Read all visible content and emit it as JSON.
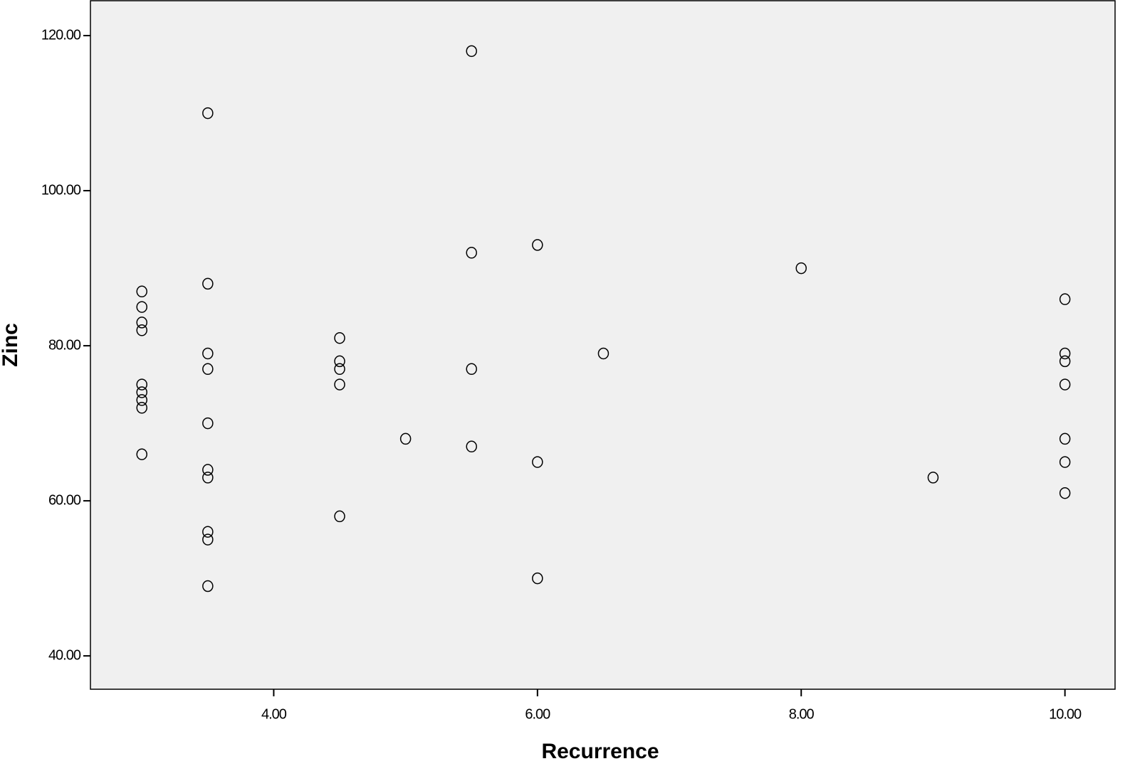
{
  "chart_data": {
    "type": "scatter",
    "x_label": "Recurrence",
    "y_label": "Zinc",
    "background": "#f0f0f0",
    "color": "#000000",
    "marker": "open-circle",
    "grid": false,
    "xlim": [
      2.61,
      10.38
    ],
    "ylim": [
      35.7,
      124.5
    ],
    "xticks": [
      {
        "value": 4,
        "label": "4.00"
      },
      {
        "value": 6,
        "label": "6.00"
      },
      {
        "value": 8,
        "label": "8.00"
      },
      {
        "value": 10,
        "label": "10.00"
      }
    ],
    "yticks": [
      {
        "value": 40,
        "label": "40.00"
      },
      {
        "value": 60,
        "label": "60.00"
      },
      {
        "value": 80,
        "label": "80.00"
      },
      {
        "value": 100,
        "label": "100.00"
      },
      {
        "value": 120,
        "label": "120.00"
      }
    ],
    "x": [
      3,
      3,
      3,
      3,
      3,
      3,
      3,
      3,
      3,
      3.5,
      3.5,
      3.5,
      3.5,
      3.5,
      3.5,
      3.5,
      3.5,
      3.5,
      3.5,
      4.5,
      4.5,
      4.5,
      4.5,
      4.5,
      5,
      5.5,
      5.5,
      5.5,
      5.5,
      6,
      6,
      6,
      6.5,
      8,
      9,
      10,
      10,
      10,
      10,
      10,
      10,
      10
    ],
    "values": [
      87,
      85,
      83,
      82,
      75,
      74,
      73,
      72,
      66,
      110,
      88,
      79,
      77,
      70,
      64,
      63,
      56,
      55,
      49,
      81,
      78,
      77,
      75,
      58,
      68,
      118,
      92,
      77,
      67,
      93,
      65,
      50,
      79,
      90,
      63,
      86,
      79,
      78,
      75,
      68,
      65,
      61
    ]
  }
}
